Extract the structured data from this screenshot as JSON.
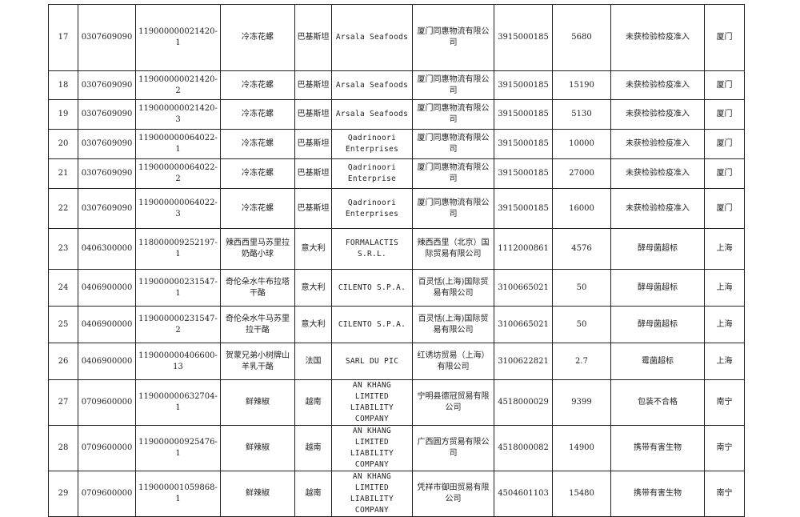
{
  "rows": [
    {
      "no": "17",
      "hs": "0307609090",
      "decl": "119000000021420-1",
      "product": "冷冻花螺",
      "country": "巴基斯坦",
      "maker": "Arsala Seafoods",
      "importer": "厦门同惠物流有限公司",
      "code": "3915000185",
      "weight": "5680",
      "reason": "未获检验检疫准入",
      "port": "厦门"
    },
    {
      "no": "18",
      "hs": "0307609090",
      "decl": "119000000021420-2",
      "product": "冷冻花螺",
      "country": "巴基斯坦",
      "maker": "Arsala Seafoods",
      "importer": "厦门同惠物流有限公司",
      "code": "3915000185",
      "weight": "15190",
      "reason": "未获检验检疫准入",
      "port": "厦门"
    },
    {
      "no": "19",
      "hs": "0307609090",
      "decl": "119000000021420-3",
      "product": "冷冻花螺",
      "country": "巴基斯坦",
      "maker": "Arsala Seafoods",
      "importer": "厦门同惠物流有限公司",
      "code": "3915000185",
      "weight": "5130",
      "reason": "未获检验检疫准入",
      "port": "厦门"
    },
    {
      "no": "20",
      "hs": "0307609090",
      "decl": "119000000064022-1",
      "product": "冷冻花螺",
      "country": "巴基斯坦",
      "maker": "Qadrinoori Enterprises",
      "importer": "厦门同惠物流有限公司",
      "code": "3915000185",
      "weight": "10000",
      "reason": "未获检验检疫准入",
      "port": "厦门"
    },
    {
      "no": "21",
      "hs": "0307609090",
      "decl": "119000000064022-2",
      "product": "冷冻花螺",
      "country": "巴基斯坦",
      "maker": "Qadrinoori Enterprise",
      "importer": "厦门同惠物流有限公司",
      "code": "3915000185",
      "weight": "27000",
      "reason": "未获检验检疫准入",
      "port": "厦门"
    },
    {
      "no": "22",
      "hs": "0307609090",
      "decl": "119000000064022-3",
      "product": "冷冻花螺",
      "country": "巴基斯坦",
      "maker": "Qadrinoori Enterprises",
      "importer": "厦门同惠物流有限公司",
      "code": "3915000185",
      "weight": "16000",
      "reason": "未获检验检疫准入",
      "port": "厦门"
    },
    {
      "no": "23",
      "hs": "0406300000",
      "decl": "118000009252197-1",
      "product": "辣西西里马苏里拉奶酪小球",
      "country": "意大利",
      "maker": "FORMALACTIS S.R.L.",
      "importer": "辣西西里（北京）国际贸易有限公司",
      "code": "1112000861",
      "weight": "4576",
      "reason": "酵母菌超标",
      "port": "上海"
    },
    {
      "no": "24",
      "hs": "0406900000",
      "decl": "119000000231547-1",
      "product": "奇伦朵水牛布拉塔干酪",
      "country": "意大利",
      "maker": "CILENTO S.P.A.",
      "importer": "百灵恬(上海)国际贸易有限公司",
      "code": "3100665021",
      "weight": "50",
      "reason": "酵母菌超标",
      "port": "上海"
    },
    {
      "no": "25",
      "hs": "0406900000",
      "decl": "119000000231547-2",
      "product": "奇伦朵水牛马苏里拉干酪",
      "country": "意大利",
      "maker": "CILENTO S.P.A.",
      "importer": "百灵恬(上海)国际贸易有限公司",
      "code": "3100665021",
      "weight": "50",
      "reason": "酵母菌超标",
      "port": "上海"
    },
    {
      "no": "26",
      "hs": "0406900000",
      "decl": "119000000406600-13",
      "product": "贺蒙兄弟小树牌山羊乳干酪",
      "country": "法国",
      "maker": "SARL DU PIC",
      "importer": "红诱坊贸易（上海）有限公司",
      "code": "3100622821",
      "weight": "2.7",
      "reason": "霉菌超标",
      "port": "上海"
    },
    {
      "no": "27",
      "hs": "0709600000",
      "decl": "119000000632704-1",
      "product": "鲜辣椒",
      "country": "越南",
      "maker": "AN KHANG LIMITED LIABILITY COMPANY",
      "importer": "宁明县德冠贸易有限公司",
      "code": "4518000029",
      "weight": "9399",
      "reason": "包装不合格",
      "port": "南宁"
    },
    {
      "no": "28",
      "hs": "0709600000",
      "decl": "119000000925476-1",
      "product": "鲜辣椒",
      "country": "越南",
      "maker": "AN KHANG LIMITED LIABILITY COMPANY",
      "importer": "广西圆方贸易有限公司",
      "code": "4518000082",
      "weight": "14900",
      "reason": "携带有害生物",
      "port": "南宁"
    },
    {
      "no": "29",
      "hs": "0709600000",
      "decl": "119000001059868-1",
      "product": "鲜辣椒",
      "country": "越南",
      "maker": "AN KHANG LIMITED LIABILITY COMPANY",
      "importer": "凭祥市御田贸易有限公司",
      "code": "4504601103",
      "weight": "15480",
      "reason": "携带有害生物",
      "port": "南宁"
    }
  ]
}
